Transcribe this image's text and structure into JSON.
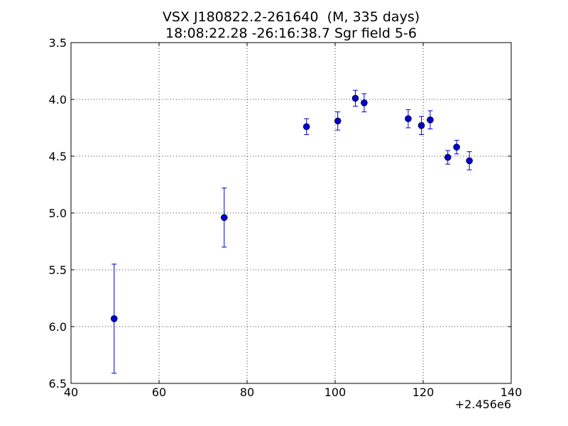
{
  "chart_data": {
    "type": "scatter",
    "title": "VSX J180822.2-261640  (M, 335 days)",
    "subtitle": "18:08:22.28 -26:16:38.7 Sgr field 5-6",
    "xlabel": "",
    "ylabel": "",
    "x_offset_label": "+2.456e6",
    "x_offset": 2456000,
    "xlim": [
      40,
      140
    ],
    "ylim": [
      6.5,
      3.5
    ],
    "y_inverted": true,
    "x_ticks": [
      40,
      60,
      80,
      100,
      120,
      140
    ],
    "x_tick_labels": [
      "40",
      "60",
      "80",
      "100",
      "120",
      "140"
    ],
    "y_ticks": [
      3.5,
      4.0,
      4.5,
      5.0,
      5.5,
      6.0,
      6.5
    ],
    "y_tick_labels": [
      "3.5",
      "4.0",
      "4.5",
      "5.0",
      "5.5",
      "6.0",
      "6.5"
    ],
    "grid": true,
    "marker_color": "#0000cc",
    "series": [
      {
        "points": [
          {
            "x": 49.8,
            "y": 5.93,
            "err": 0.48
          },
          {
            "x": 74.8,
            "y": 5.04,
            "err": 0.26
          },
          {
            "x": 93.5,
            "y": 4.24,
            "err": 0.07
          },
          {
            "x": 100.6,
            "y": 4.19,
            "err": 0.08
          },
          {
            "x": 104.6,
            "y": 3.99,
            "err": 0.07
          },
          {
            "x": 106.6,
            "y": 4.03,
            "err": 0.08
          },
          {
            "x": 116.6,
            "y": 4.17,
            "err": 0.08
          },
          {
            "x": 119.6,
            "y": 4.23,
            "err": 0.08
          },
          {
            "x": 121.6,
            "y": 4.18,
            "err": 0.08
          },
          {
            "x": 125.6,
            "y": 4.51,
            "err": 0.06
          },
          {
            "x": 127.6,
            "y": 4.42,
            "err": 0.06
          },
          {
            "x": 130.5,
            "y": 4.54,
            "err": 0.08
          }
        ]
      }
    ]
  }
}
